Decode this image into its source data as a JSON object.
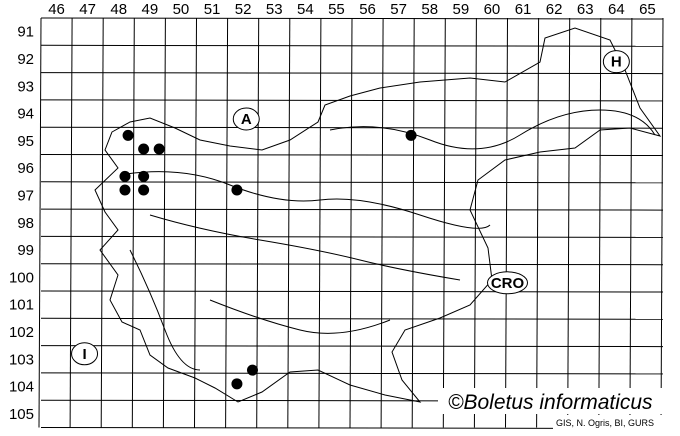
{
  "map": {
    "column_labels": [
      "46",
      "47",
      "48",
      "49",
      "50",
      "51",
      "52",
      "53",
      "54",
      "55",
      "56",
      "57",
      "58",
      "59",
      "60",
      "61",
      "62",
      "63",
      "64",
      "65"
    ],
    "row_labels": [
      "91",
      "92",
      "93",
      "94",
      "95",
      "96",
      "97",
      "98",
      "99",
      "100",
      "101",
      "102",
      "103",
      "104",
      "105"
    ],
    "countries": [
      {
        "label": "A",
        "col": 52.6,
        "row": 94.7
      },
      {
        "label": "H",
        "col": 64.5,
        "row": 92.6
      },
      {
        "label": "CRO",
        "col": 61.0,
        "row": 100.7
      },
      {
        "label": "I",
        "col": 47.4,
        "row": 103.3
      }
    ],
    "records": [
      [
        48.8,
        95.3
      ],
      [
        49.3,
        95.8
      ],
      [
        49.8,
        95.8
      ],
      [
        48.7,
        96.8
      ],
      [
        49.3,
        96.8
      ],
      [
        48.7,
        97.3
      ],
      [
        49.3,
        97.3
      ],
      [
        52.3,
        97.3
      ],
      [
        57.9,
        95.3
      ],
      [
        52.8,
        103.9
      ],
      [
        52.3,
        104.4
      ]
    ],
    "record_color": "#000000",
    "copyright": "©Boletus informaticus",
    "credit": "GIS, N. Ogris, BI, GURS"
  }
}
